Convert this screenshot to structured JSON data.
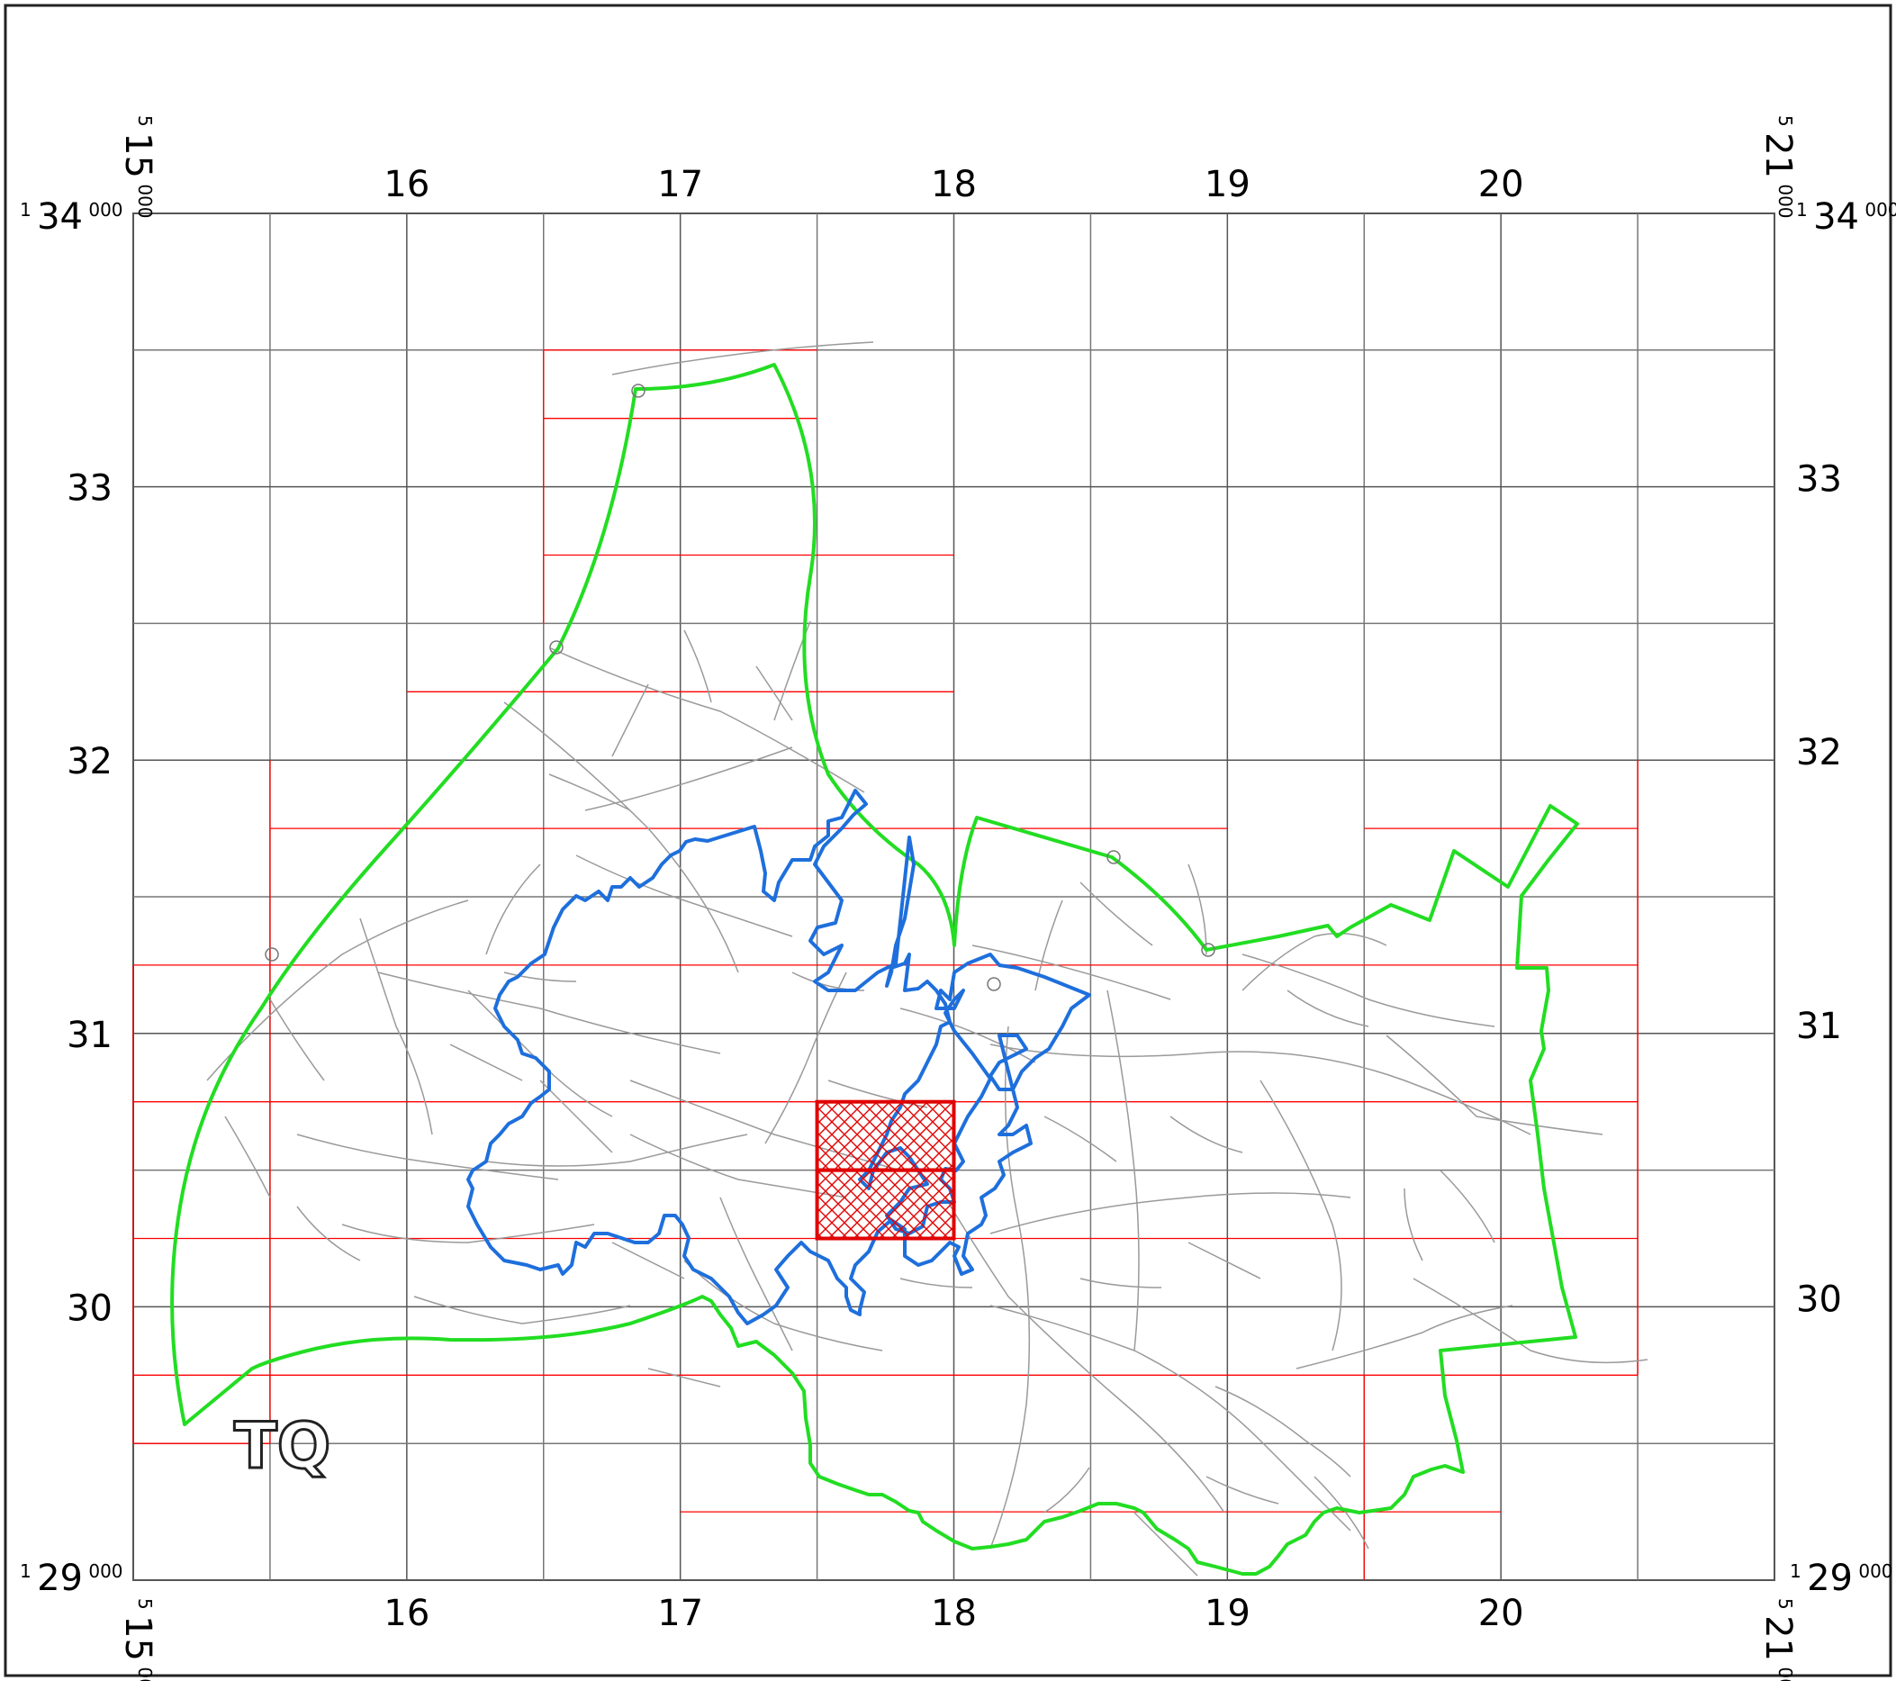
{
  "map": {
    "grid_letters": "TQ",
    "easting": {
      "corner_left": {
        "prefix": "5",
        "main": "15",
        "suffix": "000"
      },
      "corner_right": {
        "prefix": "5",
        "main": "21",
        "suffix": "000"
      },
      "ticks": [
        "16",
        "17",
        "18",
        "19",
        "20"
      ]
    },
    "northing": {
      "corner_top": {
        "prefix": "1",
        "main": "34",
        "suffix": "000"
      },
      "corner_bottom": {
        "prefix": "1",
        "main": "29",
        "suffix": "000"
      },
      "ticks": [
        "33",
        "32",
        "31",
        "30"
      ]
    },
    "colors": {
      "grid_major": "#555555",
      "grid_minor": "#777777",
      "tiles": "#ff0000",
      "selected": "#e00000",
      "outer_boundary": "#22dd22",
      "inner_boundary": "#1e6fdc",
      "roads": "#9a9a9a"
    },
    "selected_tiles": [
      {
        "e": 517500,
        "n": 130500
      },
      {
        "e": 517500,
        "n": 130250
      }
    ]
  }
}
